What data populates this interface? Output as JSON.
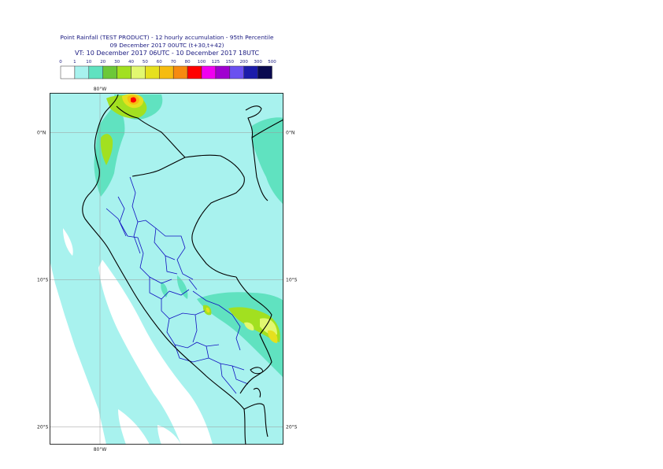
{
  "title": {
    "line1": "Point Rainfall (TEST PRODUCT) - 12 hourly accumulation - 95th Percentile",
    "line2": "09 December 2017 00UTC (t+30,t+42)",
    "line3": "VT: 10 December 2017 06UTC - 10 December 2017 18UTC"
  },
  "legend": {
    "thresholds": [
      "0",
      "1",
      "10",
      "20",
      "30",
      "40",
      "50",
      "60",
      "70",
      "80",
      "100",
      "125",
      "150",
      "200",
      "300",
      "500"
    ],
    "colors": [
      "#ffffff",
      "#a8f2ee",
      "#60e2c0",
      "#6cc838",
      "#a2e020",
      "#e2f870",
      "#e6e01e",
      "#f6bc10",
      "#f68a10",
      "#ff0000",
      "#f000f0",
      "#a000d0",
      "#6a50f0",
      "#1c1caa",
      "#0a0a50"
    ]
  },
  "map": {
    "lat_labels": [
      {
        "text": "0°N",
        "lat": 0
      },
      {
        "text": "10°S",
        "lat": -10
      },
      {
        "text": "20°S",
        "lat": -20
      }
    ],
    "lon_labels": [
      {
        "text": "80°W",
        "lon": -80
      }
    ],
    "colors": {
      "land_base": "#a8f2ee",
      "ocean": "#ffffff",
      "border_country": "#000000",
      "border_region": "#1010c0",
      "gridline": "#9a9a9a"
    }
  }
}
